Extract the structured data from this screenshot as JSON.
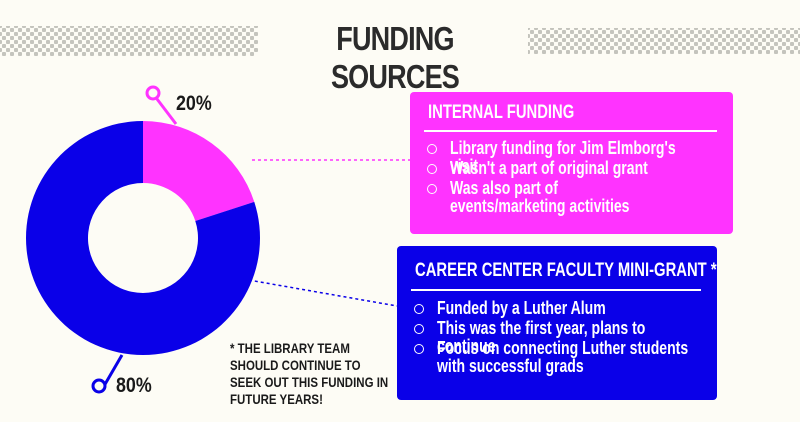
{
  "page": {
    "title": "FUNDING SOURCES"
  },
  "chart_data": {
    "type": "pie",
    "style": "donut",
    "categories": [
      "Internal Funding",
      "Career Center Faculty Mini-Grant"
    ],
    "values": [
      20,
      80
    ],
    "value_labels": [
      "20%",
      "80%"
    ],
    "colors": [
      "#ff33ff",
      "#0a00e8"
    ]
  },
  "cards": [
    {
      "title": "INTERNAL FUNDING",
      "color": "#ff33ff",
      "items": [
        "Library funding for Jim Elmborg's visit",
        "Wasn't a part of original grant",
        "Was also part of events/marketing activities"
      ]
    },
    {
      "title": "CAREER CENTER FACULTY MINI-GRANT *",
      "color": "#0a00e8",
      "items": [
        "Funded by a Luther Alum",
        "This was the first year, plans to continue",
        "Focus on connecting Luther students with successful grads"
      ]
    }
  ],
  "footnote": "* THE LIBRARY TEAM SHOULD CONTINUE TO SEEK OUT THIS FUNDING IN FUTURE YEARS!"
}
